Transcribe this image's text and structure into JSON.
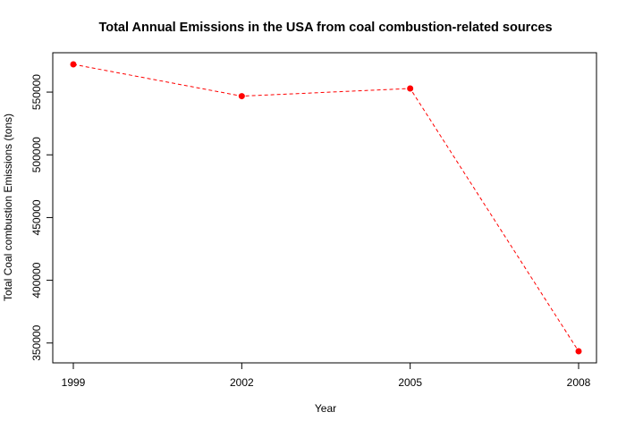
{
  "chart_data": {
    "type": "line",
    "title": "Total Annual Emissions in the USA from coal combustion-related sources",
    "xlabel": "Year",
    "ylabel": "Total Coal combustion Emissions (tons)",
    "x": [
      1999,
      2002,
      2005,
      2008
    ],
    "x_tick_labels": [
      "1999",
      "2002",
      "2005",
      "2008"
    ],
    "y_ticks": [
      350000,
      400000,
      450000,
      500000,
      550000
    ],
    "y_tick_labels": [
      "350000",
      "400000",
      "450000",
      "500000",
      "550000"
    ],
    "series": [
      {
        "values": [
          572126,
          546789,
          552881,
          343432
        ]
      }
    ],
    "xlim": [
      1999,
      2008
    ],
    "ylim": [
      343432,
      572126
    ],
    "grid": false,
    "line_style": "dashed",
    "marker": "filled-circle",
    "color": "#ff0000"
  }
}
